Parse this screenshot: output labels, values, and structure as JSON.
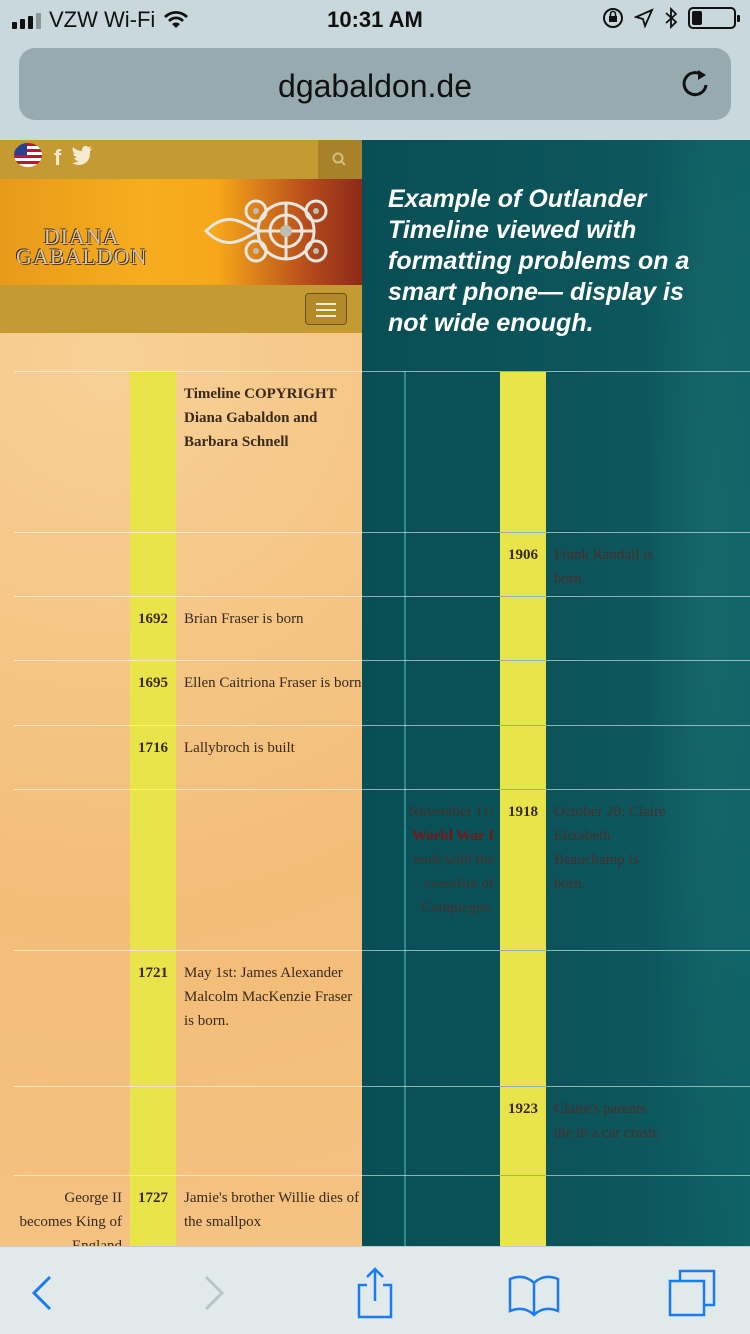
{
  "status": {
    "carrier": "VZW Wi-Fi",
    "time": "10:31 AM"
  },
  "browser": {
    "url": "dgabaldon.de",
    "reload_icon": "reload-icon",
    "toolbar_icons": [
      "back-icon",
      "forward-icon",
      "share-icon",
      "bookmarks-icon",
      "tabs-icon"
    ]
  },
  "site": {
    "social": {
      "facebook": "f"
    },
    "logo": {
      "line1": "DIANA",
      "line2": "GABALDON"
    }
  },
  "caption": "Example of Outlander Timeline viewed with formatting problems on a smart phone— display is not wide enough.",
  "timeline": {
    "rows": [
      {
        "left": "",
        "year": "",
        "text": "Timeline COPYRIGHT Diana Gabaldon and Barbara Schnell",
        "left2": "",
        "year2": "",
        "text2": ""
      },
      {
        "left": "",
        "year": "",
        "text": "",
        "left2": "",
        "year2": "1906",
        "text2": "Frank Randall is born"
      },
      {
        "left": "",
        "year": "1692",
        "text": "Brian Fraser is born",
        "left2": "",
        "year2": "",
        "text2": ""
      },
      {
        "left": "",
        "year": "1695",
        "text": "Ellen Caitriona Fraser is born",
        "left2": "",
        "year2": "",
        "text2": ""
      },
      {
        "left": "",
        "year": "1716",
        "text": "Lallybroch is built",
        "left2": "",
        "year2": "",
        "text2": ""
      },
      {
        "left": "",
        "year": "",
        "text": "",
        "left2_a": "November 11: ",
        "left2_red": "World War I",
        "left2_b": " ends with the ceasefire of Compiegne.",
        "year2": "1918",
        "text2": "October 20: Claire Elizabeth Beauchamp is born."
      },
      {
        "left": "",
        "year": "1721",
        "text": "May 1st: James Alexander Malcolm MacKenzie Fraser is born.",
        "left2": "",
        "year2": "",
        "text2": ""
      },
      {
        "left": "",
        "year": "",
        "text": "",
        "left2": "",
        "year2": "1923",
        "text2": "Claire's parents die in a car crash."
      },
      {
        "left": "George II becomes King of England",
        "year": "1727",
        "text": "Jamie's brother Willie dies of the smallpox",
        "left2": "",
        "year2": "",
        "text2": ""
      }
    ]
  },
  "colors": {
    "year_band": "#e8e44a",
    "teal": "#0b5157",
    "gold_bar": "#c49a32"
  }
}
